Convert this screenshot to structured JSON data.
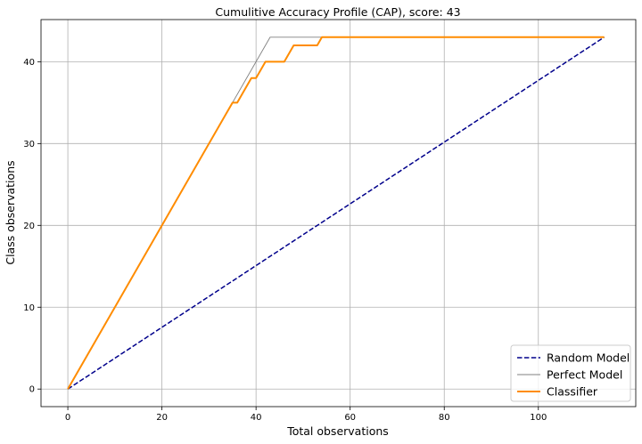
{
  "chart_data": {
    "type": "line",
    "title": "Cumulitive Accuracy Profile (CAP), score: 43",
    "xlabel": "Total observations",
    "ylabel": "Class observations",
    "xlim": [
      -5.7,
      120.7
    ],
    "ylim": [
      -2.15,
      45.15
    ],
    "xticks": [
      0,
      20,
      40,
      60,
      80,
      100
    ],
    "yticks": [
      0,
      10,
      20,
      30,
      40
    ],
    "grid": true,
    "legend_position": "bottom-right",
    "series": [
      {
        "name": "Random Model",
        "color": "#00008b",
        "style": "dashed",
        "x": [
          0,
          114
        ],
        "y": [
          0,
          43
        ]
      },
      {
        "name": "Perfect Model",
        "color": "#808080",
        "style": "solid-thin",
        "x": [
          0,
          43,
          114
        ],
        "y": [
          0,
          43,
          43
        ]
      },
      {
        "name": "Classifier",
        "color": "#ff8c00",
        "style": "solid-thick",
        "x": [
          0,
          35,
          36,
          39,
          40,
          42,
          46,
          48,
          53,
          54,
          114
        ],
        "y": [
          0,
          35,
          35,
          38,
          38,
          40,
          40,
          42,
          42,
          43,
          43
        ]
      }
    ]
  }
}
